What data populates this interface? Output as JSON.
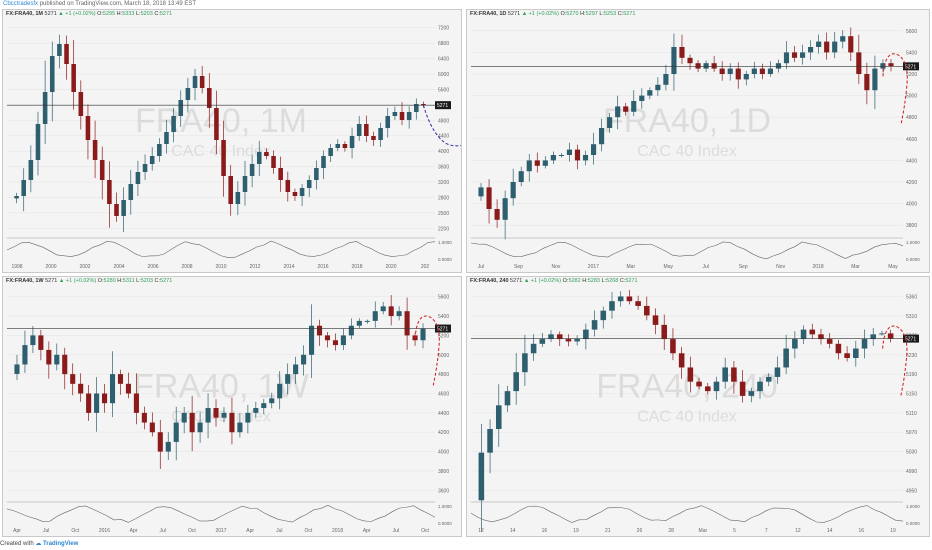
{
  "header": {
    "author": "Cbcctradesfx",
    "published": "published on TradingView.com, March 18, 2018 13:49 EST"
  },
  "footer": {
    "created_with": "Created with",
    "brand": "TradingView"
  },
  "colors": {
    "up": "#2d5f6e",
    "down": "#8b1a1a",
    "forecast_blue": "#2a2aa8",
    "forecast_red": "#d01818",
    "watermark": "#c9c9c9",
    "price_label_bg": "#1b1b1b"
  },
  "chart_data": [
    {
      "type": "candlestick",
      "symbol": "FX:FRA40, 1M",
      "watermark_symbol": "FRA40, 1M",
      "watermark_name": "CAC 40 Index",
      "last": "5271",
      "change": "+1 (+0.02%)",
      "open": "5295",
      "high": "5333",
      "low": "5203",
      "close": "5271",
      "price_label": "5271",
      "x_ticks": [
        "1998",
        "2000",
        "2002",
        "2004",
        "2006",
        "2008",
        "2010",
        "2012",
        "2014",
        "2016",
        "2018",
        "2020",
        "202"
      ],
      "y_ticks": [
        "7200",
        "6800",
        "6400",
        "6000",
        "5600",
        "5200",
        "4800",
        "4400",
        "4000",
        "3600",
        "3200",
        "2800",
        "2500",
        "2200"
      ],
      "ylim": [
        2000,
        7400
      ],
      "oscillator_ticks": [
        "1.0000",
        "0.0000"
      ],
      "forecast": "blue dashed wave",
      "closes": [
        3000,
        3400,
        3900,
        4800,
        5600,
        6500,
        6800,
        6300,
        5600,
        5000,
        4400,
        3900,
        3400,
        2800,
        2500,
        2900,
        3300,
        3600,
        3800,
        4000,
        4300,
        4600,
        5000,
        5400,
        5700,
        6000,
        5700,
        5200,
        4400,
        3500,
        2800,
        3100,
        3500,
        3800,
        4100,
        4000,
        3700,
        3400,
        3100,
        3000,
        3200,
        3400,
        3700,
        4000,
        4200,
        4300,
        4200,
        4500,
        4800,
        4500,
        4400,
        4700,
        5000,
        5100,
        4900,
        5100,
        5300,
        5271
      ]
    },
    {
      "type": "candlestick",
      "symbol": "FX:FRA40, 1D",
      "watermark_symbol": "FRA40, 1D",
      "watermark_name": "CAC 40 Index",
      "last": "5271",
      "change": "+1 (+0.02%)",
      "open": "5270",
      "high": "5297",
      "low": "5253",
      "close": "5271",
      "price_label": "5271",
      "x_ticks": [
        "Jul",
        "Sep",
        "Nov",
        "2017",
        "Mar",
        "May",
        "Jul",
        "Sep",
        "Nov",
        "2018",
        "Mar",
        "May"
      ],
      "y_ticks": [
        "5600",
        "5400",
        "5200",
        "5000",
        "4800",
        "4600",
        "4400",
        "4200",
        "4000",
        "3800"
      ],
      "ylim": [
        3700,
        5700
      ],
      "oscillator_ticks": [
        "1.0000",
        "0.0000"
      ],
      "forecast": "red dashed decline",
      "closes": [
        4150,
        3950,
        3850,
        4050,
        4200,
        4300,
        4400,
        4350,
        4400,
        4450,
        4450,
        4500,
        4400,
        4450,
        4550,
        4700,
        4800,
        4900,
        4850,
        4950,
        5000,
        5050,
        5100,
        5200,
        5450,
        5350,
        5300,
        5250,
        5300,
        5250,
        5200,
        5250,
        5150,
        5200,
        5250,
        5200,
        5250,
        5300,
        5400,
        5350,
        5400,
        5450,
        5500,
        5400,
        5500,
        5550,
        5400,
        5200,
        5050,
        5250,
        5300,
        5271
      ]
    },
    {
      "type": "candlestick",
      "symbol": "FX:FRA40, 1W",
      "watermark_symbol": "FRA40, 1W",
      "watermark_name": "CAC 40 Index",
      "last": "5271",
      "change": "+1 (+0.02%)",
      "open": "5280",
      "high": "5311",
      "low": "5203",
      "close": "5271",
      "price_label": "5271",
      "x_ticks": [
        "Apr",
        "Jul",
        "Oct",
        "2016",
        "Apr",
        "Jul",
        "Oct",
        "2017",
        "Apr",
        "Jul",
        "Oct",
        "2018",
        "Apr",
        "Jul",
        "Oct"
      ],
      "y_ticks": [
        "5600",
        "5400",
        "5200",
        "5000",
        "4800",
        "4600",
        "4400",
        "4200",
        "4000",
        "3800",
        "3600"
      ],
      "ylim": [
        3500,
        5700
      ],
      "oscillator_ticks": [
        "1.0000",
        "0.0000"
      ],
      "forecast": "red dashed decline",
      "closes": [
        4900,
        5100,
        5200,
        5050,
        4900,
        5000,
        4800,
        4700,
        4600,
        4400,
        4600,
        4500,
        4800,
        4700,
        4600,
        4400,
        4300,
        4200,
        4000,
        4100,
        4300,
        4400,
        4200,
        4300,
        4450,
        4350,
        4400,
        4200,
        4300,
        4400,
        4450,
        4500,
        4550,
        4700,
        4800,
        4900,
        5000,
        5300,
        5200,
        5150,
        5100,
        5200,
        5300,
        5350,
        5350,
        5450,
        5500,
        5400,
        5450,
        5200,
        5150,
        5271
      ]
    },
    {
      "type": "candlestick",
      "symbol": "FX:FRA40, 240",
      "watermark_symbol": "FRA40, 240",
      "watermark_name": "CAC 40 Index",
      "last": "5271",
      "change": "+1 (+0.02%)",
      "open": "5282",
      "high": "5283",
      "low": "5268",
      "close": "5271",
      "price_label": "5271",
      "x_ticks": [
        "12",
        "14",
        "16",
        "19",
        "21",
        "26",
        "28",
        "Mar",
        "5",
        "7",
        "12",
        "14",
        "16",
        "19"
      ],
      "y_ticks": [
        "5360",
        "5310",
        "5270",
        "5230",
        "5190",
        "5150",
        "5110",
        "5070",
        "5030",
        "4990",
        "4950"
      ],
      "ylim": [
        4930,
        5380
      ],
      "oscillator_ticks": [
        "1.0000",
        "0.0000"
      ],
      "forecast": "red dashed decline",
      "closes": [
        5030,
        5080,
        5130,
        5160,
        5200,
        5240,
        5260,
        5270,
        5280,
        5270,
        5265,
        5270,
        5290,
        5310,
        5330,
        5350,
        5360,
        5350,
        5340,
        5320,
        5300,
        5270,
        5240,
        5210,
        5180,
        5170,
        5160,
        5180,
        5210,
        5180,
        5150,
        5160,
        5180,
        5190,
        5210,
        5250,
        5270,
        5290,
        5280,
        5270,
        5260,
        5240,
        5230,
        5250,
        5270,
        5280,
        5282,
        5271
      ]
    }
  ]
}
